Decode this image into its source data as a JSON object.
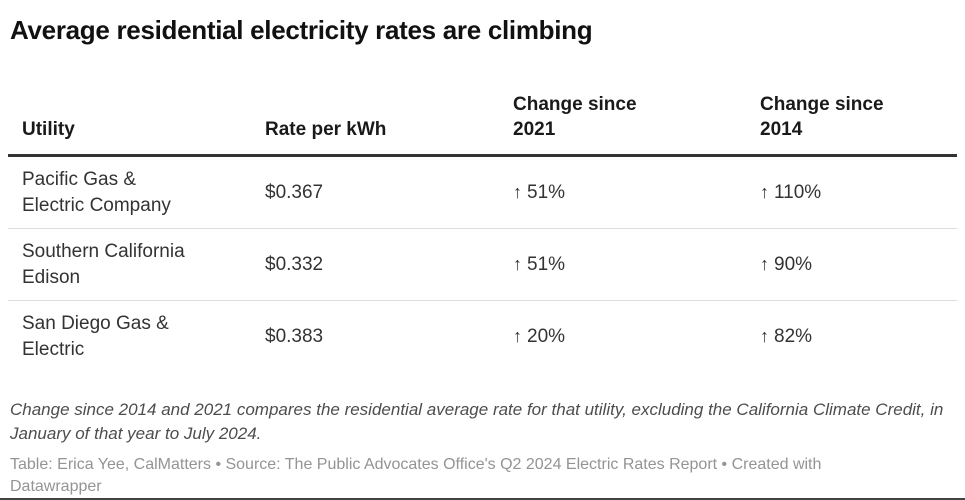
{
  "title": "Average residential electricity rates are climbing",
  "chart_data": {
    "type": "table",
    "title": "Average residential electricity rates are climbing",
    "columns": [
      "Utility",
      "Rate per kWh",
      "Change since 2021",
      "Change since 2014"
    ],
    "rows": [
      {
        "utility": "Pacific Gas & Electric Company",
        "rate_per_kwh": "$0.367",
        "change_since_2021": {
          "arrow": "↑",
          "value": "51%"
        },
        "change_since_2014": {
          "arrow": "↑",
          "value": "110%"
        }
      },
      {
        "utility": "Southern California Edison",
        "rate_per_kwh": "$0.332",
        "change_since_2021": {
          "arrow": "↑",
          "value": "51%"
        },
        "change_since_2014": {
          "arrow": "↑",
          "value": "90%"
        }
      },
      {
        "utility": "San Diego Gas & Electric",
        "rate_per_kwh": "$0.383",
        "change_since_2021": {
          "arrow": "↑",
          "value": "20%"
        },
        "change_since_2014": {
          "arrow": "↑",
          "value": "82%"
        }
      }
    ],
    "numeric": {
      "rate_per_kwh_usd": [
        0.367,
        0.332,
        0.383
      ],
      "change_since_2021_pct": [
        51,
        51,
        20
      ],
      "change_since_2014_pct": [
        110,
        90,
        82
      ]
    },
    "notes": "Change since 2014 and 2021 compares the residential average rate for that utility, excluding the California Climate Credit, in January of that year to July 2024.",
    "attribution": "Table: Erica Yee, CalMatters • Source: The Public Advocates Office's Q2 2024 Electric Rates Report • Created with Datawrapper"
  },
  "colors": {
    "background": "#ffffff",
    "title_text": "#111111",
    "header_text": "#1a1a1a",
    "body_text": "#333333",
    "header_rule": "#333333",
    "row_divider": "#dddddd",
    "notes_text": "#4d4d4d",
    "attribution_text": "#949494"
  }
}
